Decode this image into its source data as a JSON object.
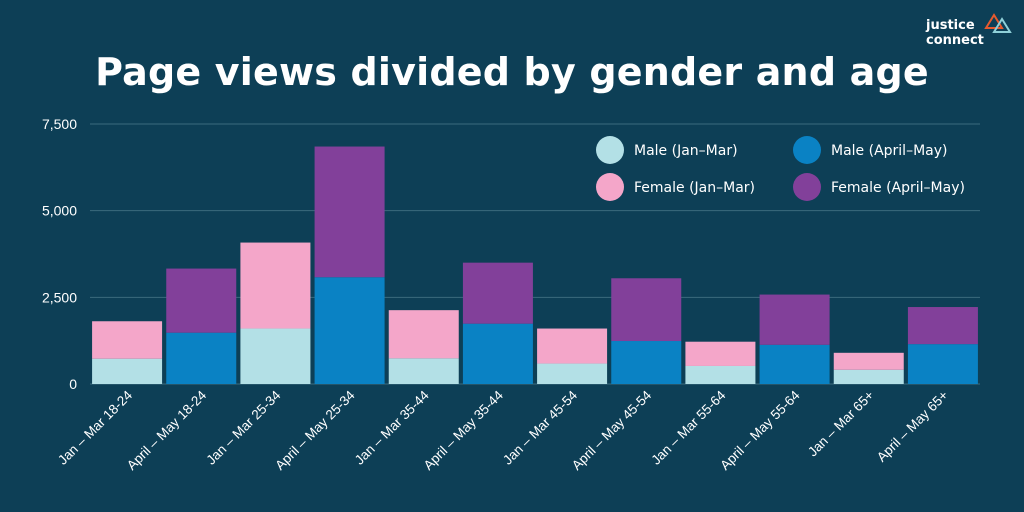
{
  "title": "Page views divided by gender and age",
  "logo": {
    "line1": "justice",
    "line2": "connect",
    "colors": [
      "#e65a2e",
      "#8fd0d8"
    ]
  },
  "chart_data": {
    "type": "bar",
    "stacked": true,
    "categories": [
      "Jan – Mar 18-24",
      "April – May 18-24",
      "Jan – Mar 25-34",
      "April – May 25-34",
      "Jan – Mar 35-44",
      "April – May 35-44",
      "Jan – Mar 45-54",
      "April – May 45-54",
      "Jan – Mar 55-64",
      "April – May 55-64",
      "Jan – Mar 65+",
      "April – May 65+"
    ],
    "series": [
      {
        "name": "Male (Jan–Mar)",
        "color": "#b3e0e6",
        "values": [
          730,
          null,
          1600,
          null,
          740,
          null,
          590,
          null,
          520,
          null,
          410,
          null
        ]
      },
      {
        "name": "Female (Jan–Mar)",
        "color": "#f4a6c9",
        "values": [
          1080,
          null,
          2480,
          null,
          1390,
          null,
          1010,
          null,
          700,
          null,
          490,
          null
        ]
      },
      {
        "name": "Male (April–May)",
        "color": "#0a82c4",
        "values": [
          null,
          1480,
          null,
          3080,
          null,
          1740,
          null,
          1240,
          null,
          1130,
          null,
          1150
        ]
      },
      {
        "name": "Female (April–May)",
        "color": "#82409a",
        "values": [
          null,
          1850,
          null,
          3770,
          null,
          1760,
          null,
          1810,
          null,
          1450,
          null,
          1070
        ]
      }
    ],
    "yticks": [
      0,
      2500,
      5000,
      7500
    ],
    "ytick_labels": [
      "0",
      "2,500",
      "5,000",
      "7,500"
    ],
    "ylim": [
      0,
      7500
    ],
    "grid": true,
    "legend_position": "top-right",
    "legend_order": [
      "Male (Jan–Mar)",
      "Male (April–May)",
      "Female (Jan–Mar)",
      "Female (April–May)"
    ],
    "grid_color": "#3b6b7d"
  }
}
